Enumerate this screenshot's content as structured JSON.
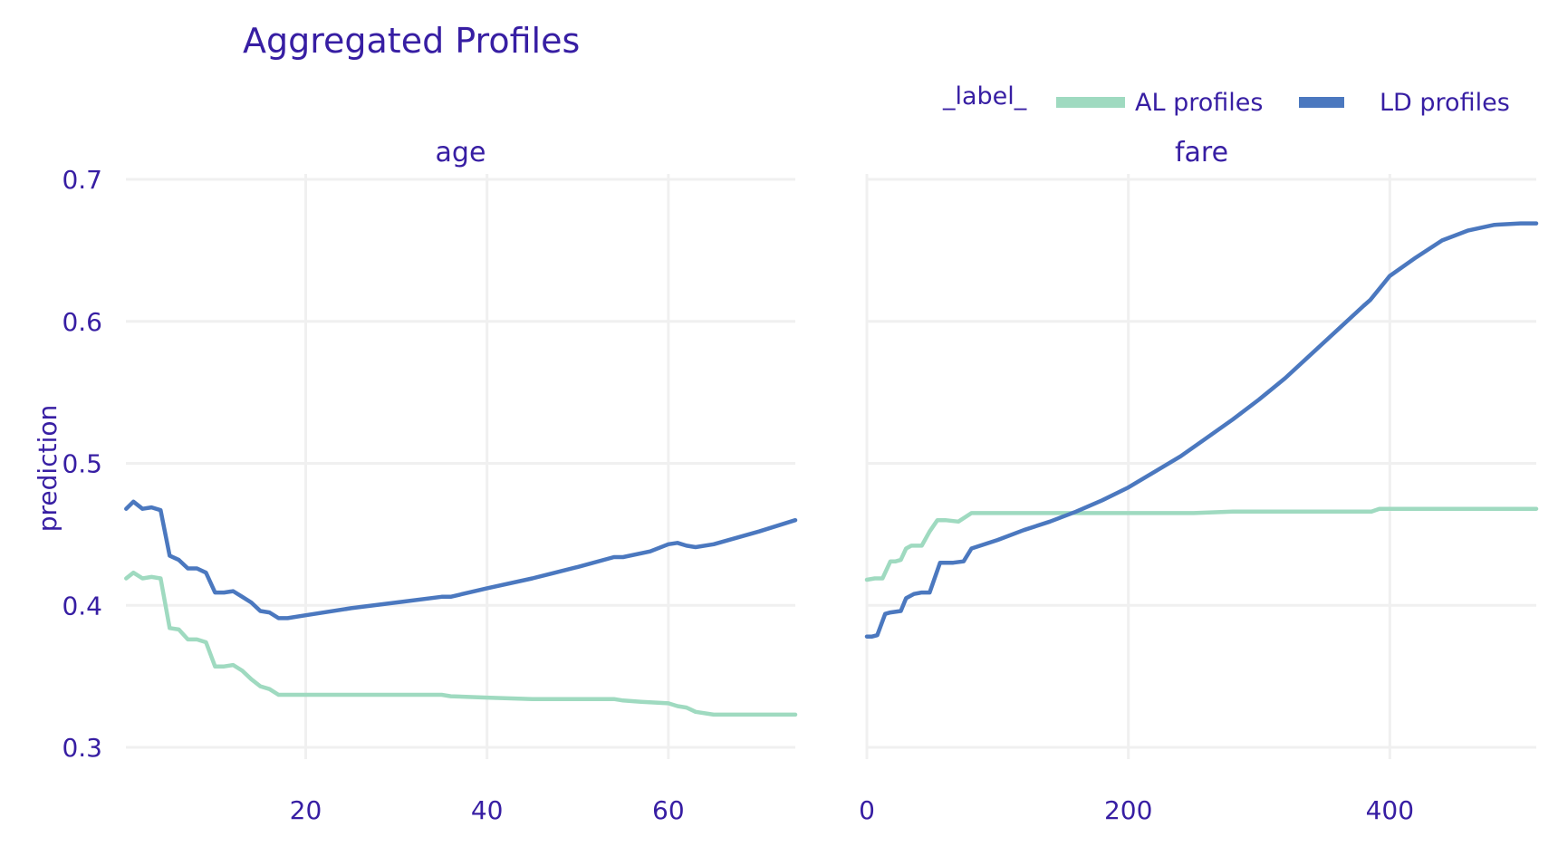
{
  "chart_data": {
    "type": "line",
    "title": "Aggregated Profiles",
    "ylabel": "prediction",
    "ylim": [
      0.3,
      0.7
    ],
    "yticks": [
      "0.3",
      "0.4",
      "0.5",
      "0.6",
      "0.7"
    ],
    "grid": true,
    "legend": {
      "title": "_label_",
      "placement": "top-right",
      "entries": [
        "AL profiles",
        "LD profiles"
      ]
    },
    "colors": {
      "AL profiles": "#9fdac0",
      "LD profiles": "#4b78bf"
    },
    "panels": [
      {
        "facet": "age",
        "xlim": [
          0.17,
          74
        ],
        "xticks": [
          20,
          40,
          60
        ],
        "series": [
          {
            "name": "AL profiles",
            "x": [
              0.2,
              1,
              2,
              3,
              4,
              5,
              6,
              7,
              8,
              9,
              10,
              11,
              12,
              13,
              14,
              15,
              16,
              17,
              18,
              20,
              25,
              30,
              35,
              36,
              40,
              45,
              50,
              54,
              55,
              57,
              60,
              61,
              62,
              63,
              65,
              70,
              74
            ],
            "y": [
              0.419,
              0.423,
              0.419,
              0.42,
              0.419,
              0.384,
              0.383,
              0.376,
              0.376,
              0.374,
              0.357,
              0.357,
              0.358,
              0.354,
              0.348,
              0.343,
              0.341,
              0.337,
              0.337,
              0.337,
              0.337,
              0.337,
              0.337,
              0.336,
              0.335,
              0.334,
              0.334,
              0.334,
              0.333,
              0.332,
              0.331,
              0.329,
              0.328,
              0.325,
              0.323,
              0.323,
              0.323
            ]
          },
          {
            "name": "LD profiles",
            "x": [
              0.2,
              1,
              2,
              3,
              4,
              5,
              6,
              7,
              8,
              9,
              10,
              11,
              12,
              13,
              14,
              15,
              16,
              17,
              18,
              20,
              25,
              30,
              35,
              36,
              40,
              45,
              50,
              54,
              55,
              58,
              60,
              61,
              62,
              63,
              65,
              70,
              74
            ],
            "y": [
              0.468,
              0.473,
              0.468,
              0.469,
              0.467,
              0.435,
              0.432,
              0.426,
              0.426,
              0.423,
              0.409,
              0.409,
              0.41,
              0.406,
              0.402,
              0.396,
              0.395,
              0.391,
              0.391,
              0.393,
              0.398,
              0.402,
              0.406,
              0.406,
              0.412,
              0.419,
              0.427,
              0.434,
              0.434,
              0.438,
              0.443,
              0.444,
              0.442,
              0.441,
              0.443,
              0.452,
              0.46
            ]
          }
        ]
      },
      {
        "facet": "fare",
        "xlim": [
          0,
          512
        ],
        "xticks": [
          0,
          200,
          400
        ],
        "series": [
          {
            "name": "AL profiles",
            "x": [
              0,
              6,
              12,
              18,
              22,
              26,
              30,
              34,
              38,
              42,
              48,
              54,
              60,
              70,
              80,
              90,
              120,
              150,
              180,
              220,
              250,
              280,
              320,
              360,
              386,
              392,
              400,
              440,
              480,
              512
            ],
            "y": [
              0.418,
              0.419,
              0.419,
              0.431,
              0.431,
              0.432,
              0.44,
              0.442,
              0.442,
              0.442,
              0.452,
              0.46,
              0.46,
              0.459,
              0.465,
              0.465,
              0.465,
              0.465,
              0.465,
              0.465,
              0.465,
              0.466,
              0.466,
              0.466,
              0.466,
              0.468,
              0.468,
              0.468,
              0.468,
              0.468
            ]
          },
          {
            "name": "LD profiles",
            "x": [
              0,
              4,
              8,
              14,
              18,
              26,
              30,
              36,
              42,
              48,
              56,
              60,
              66,
              74,
              80,
              100,
              120,
              140,
              160,
              180,
              200,
              220,
              240,
              260,
              280,
              300,
              320,
              340,
              360,
              380,
              385,
              400,
              420,
              440,
              460,
              480,
              500,
              512
            ],
            "y": [
              0.378,
              0.378,
              0.379,
              0.394,
              0.395,
              0.396,
              0.405,
              0.408,
              0.409,
              0.409,
              0.43,
              0.43,
              0.43,
              0.431,
              0.44,
              0.446,
              0.453,
              0.459,
              0.466,
              0.474,
              0.483,
              0.494,
              0.505,
              0.518,
              0.531,
              0.545,
              0.56,
              0.577,
              0.594,
              0.611,
              0.615,
              0.632,
              0.645,
              0.657,
              0.664,
              0.668,
              0.669,
              0.669
            ]
          }
        ]
      }
    ]
  }
}
